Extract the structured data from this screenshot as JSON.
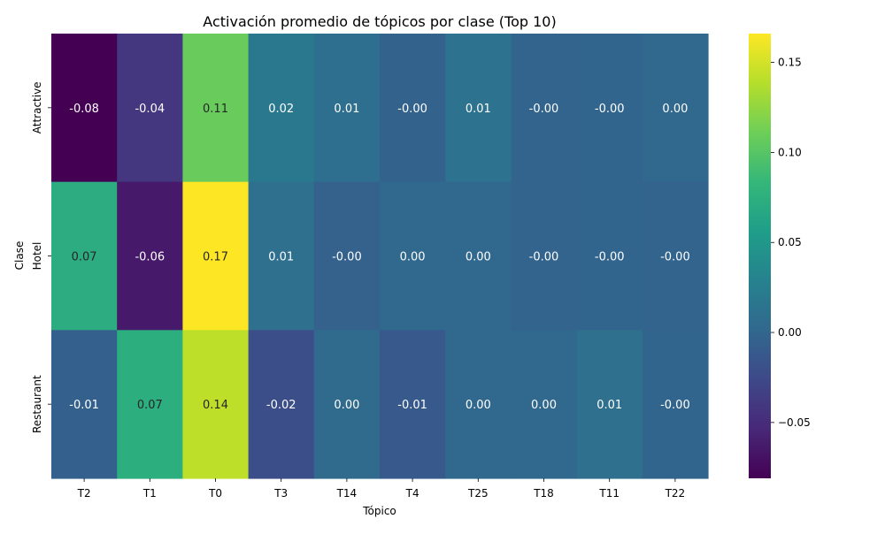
{
  "chart_data": {
    "type": "heatmap",
    "title": "Activación promedio de tópicos por clase (Top 10)",
    "xlabel": "Tópico",
    "ylabel": "Clase",
    "x_categories": [
      "T2",
      "T1",
      "T0",
      "T3",
      "T14",
      "T4",
      "T25",
      "T18",
      "T11",
      "T22"
    ],
    "y_categories": [
      "Attractive",
      "Hotel",
      "Restaurant"
    ],
    "values": [
      [
        -0.081,
        -0.042,
        0.108,
        0.018,
        0.008,
        -0.003,
        0.012,
        -0.002,
        -0.001,
        0.001
      ],
      [
        0.072,
        -0.064,
        0.166,
        0.01,
        -0.004,
        0.002,
        0.002,
        -0.002,
        -0.001,
        -0.002
      ],
      [
        -0.006,
        0.074,
        0.142,
        -0.022,
        0.004,
        -0.012,
        0.002,
        0.001,
        0.01,
        -0.001
      ]
    ],
    "labels": [
      [
        "-0.08",
        "-0.04",
        "0.11",
        "0.02",
        "0.01",
        "-0.00",
        "0.01",
        "-0.00",
        "-0.00",
        "0.00"
      ],
      [
        "0.07",
        "-0.06",
        "0.17",
        "0.01",
        "-0.00",
        "0.00",
        "0.00",
        "-0.00",
        "-0.00",
        "-0.00"
      ],
      [
        "-0.01",
        "0.07",
        "0.14",
        "-0.02",
        "0.00",
        "-0.01",
        "0.00",
        "0.00",
        "0.01",
        "-0.00"
      ]
    ],
    "colormap": "viridis",
    "vmin": -0.081,
    "vmax": 0.166,
    "colorbar_ticks": [
      -0.05,
      0.0,
      0.05,
      0.1,
      0.15
    ],
    "colorbar_tick_labels": [
      "−0.05",
      "0.00",
      "0.05",
      "0.10",
      "0.15"
    ]
  }
}
